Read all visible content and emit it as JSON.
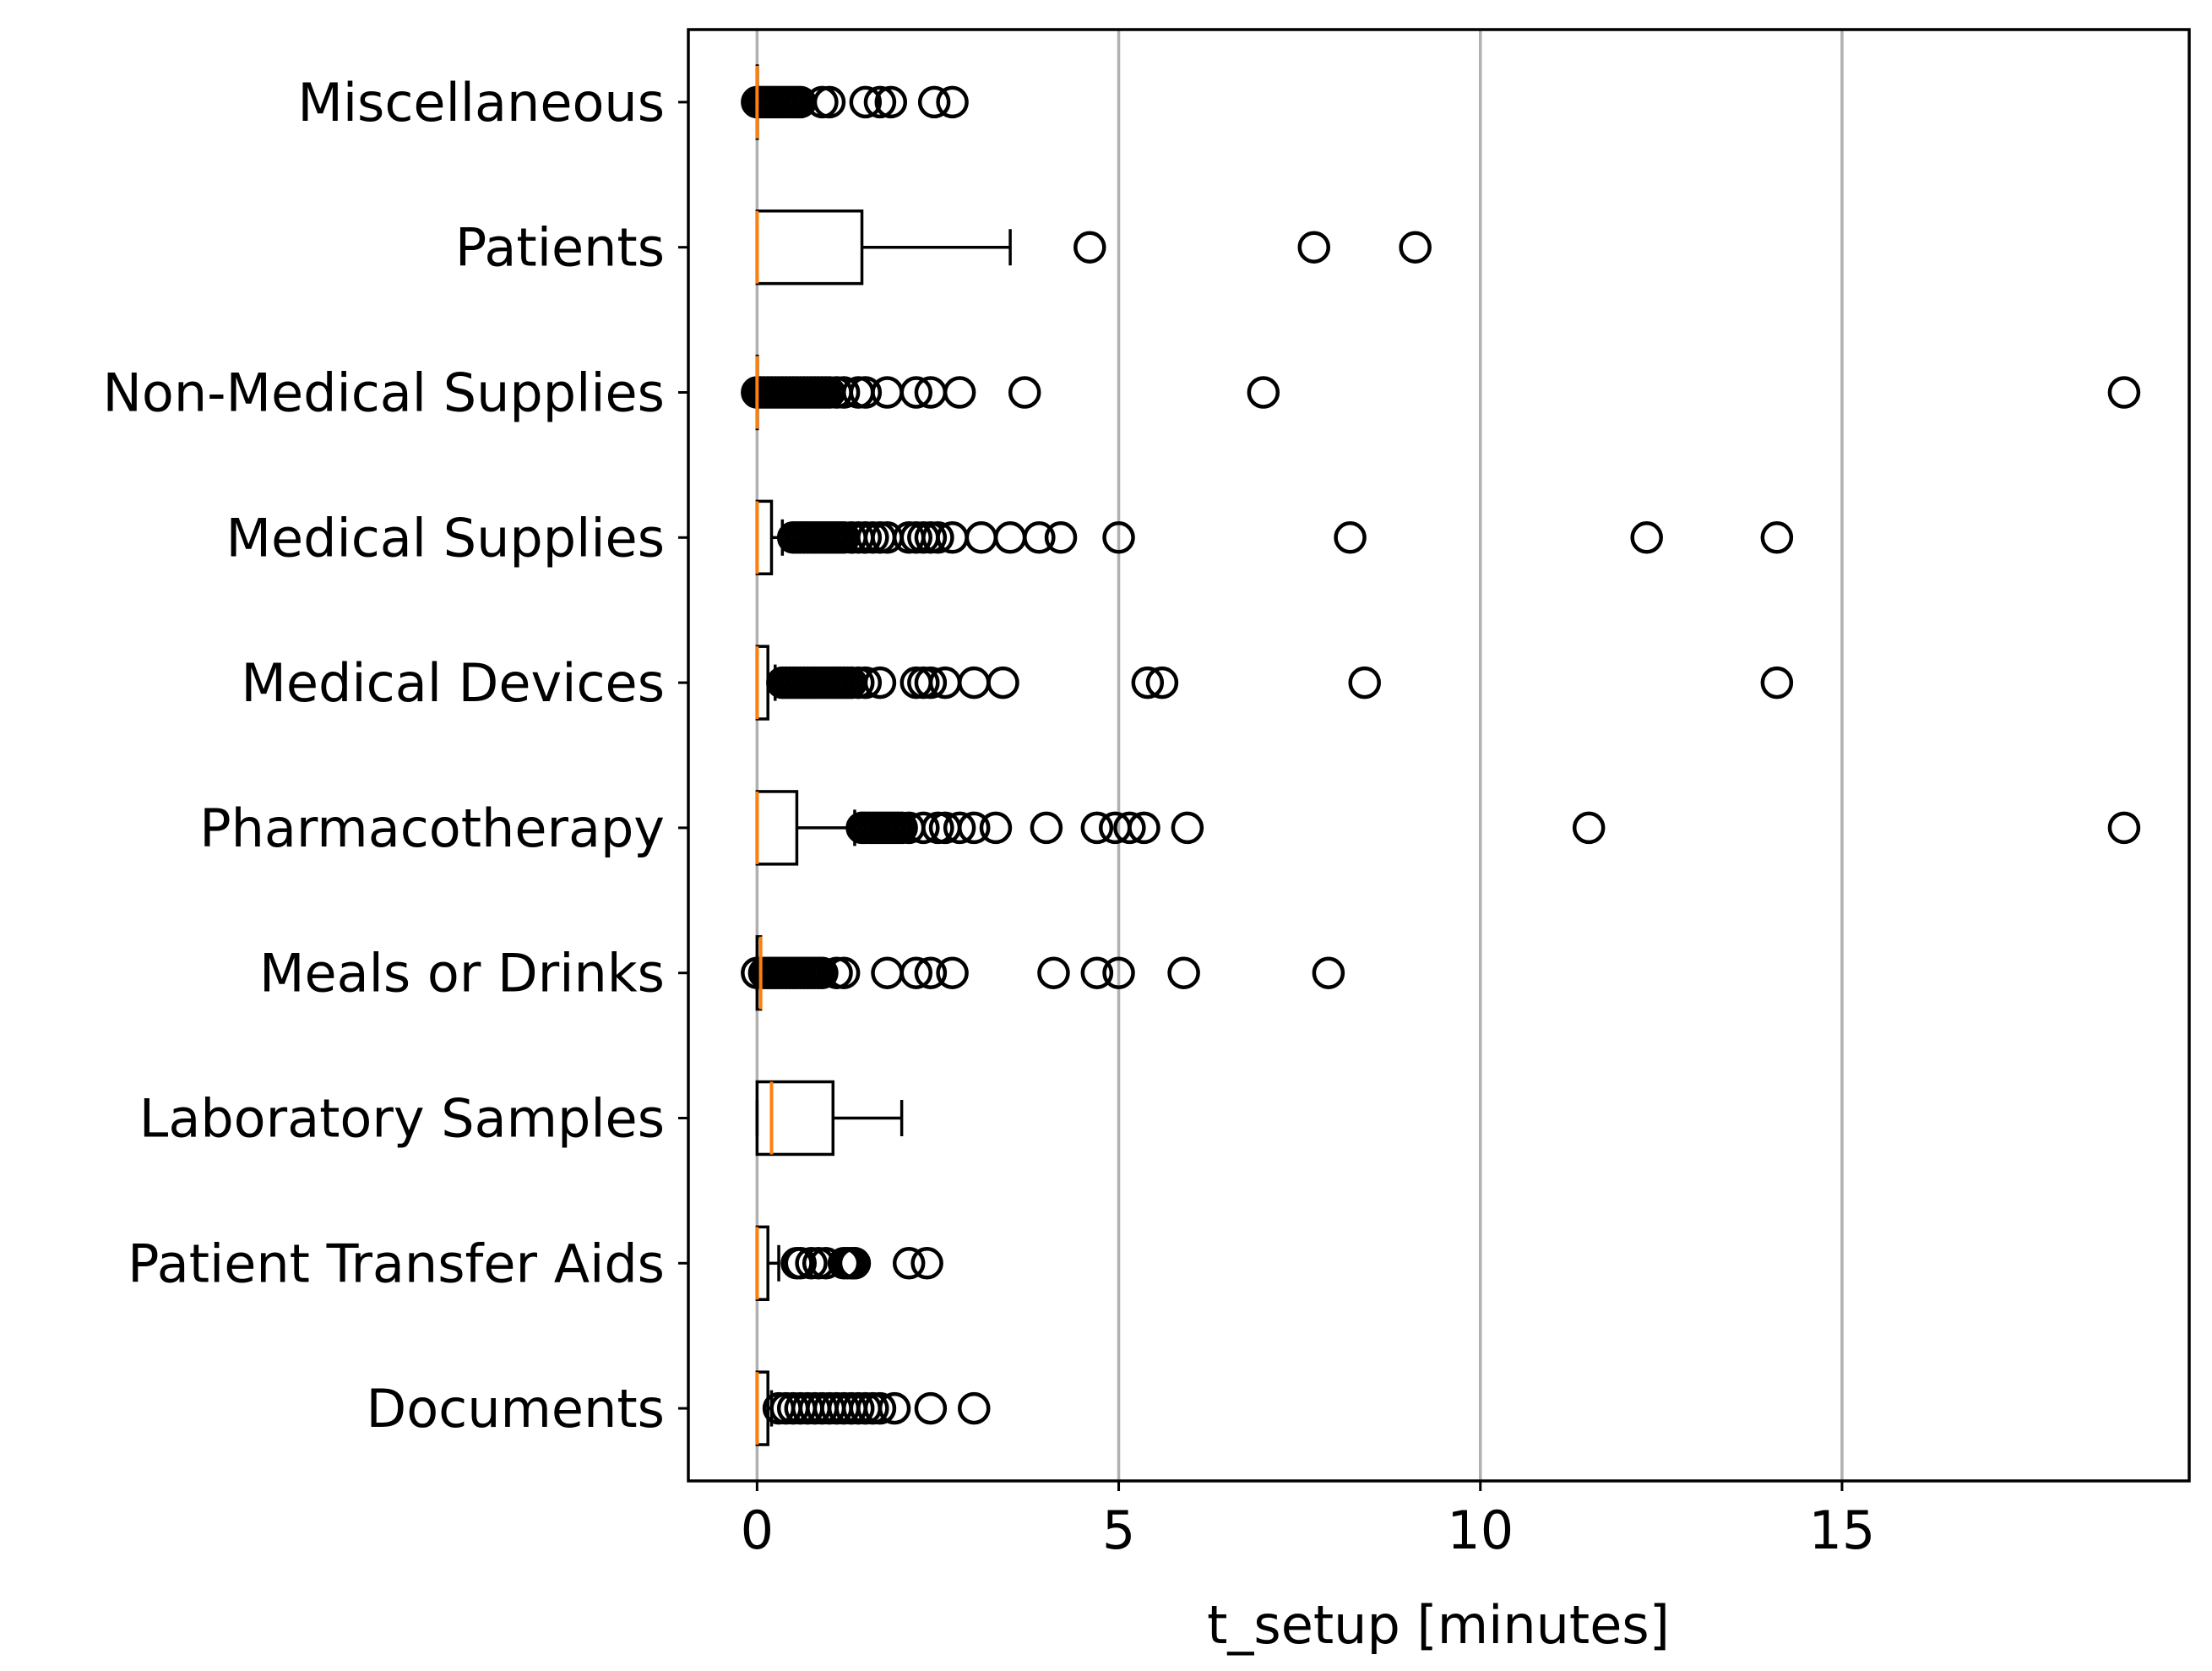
{
  "chart_data": {
    "type": "box",
    "orientation": "horizontal",
    "title": "",
    "xlabel": "t_setup [minutes]",
    "ylabel": "",
    "xlim": [
      -0.95,
      19.8
    ],
    "xticks": [
      0,
      5,
      10,
      15
    ],
    "grid": "x",
    "colors": {
      "median": "#ff7f0e",
      "box": "#000000",
      "grid": "#b0b0b0",
      "flier": "#000000"
    },
    "categories": [
      {
        "name": "Documents",
        "whisker_low": 0.0,
        "q1": 0.0,
        "median": 0.0,
        "q3": 0.15,
        "whisker_high": 0.2,
        "outliers": [
          0.3,
          0.4,
          0.5,
          0.6,
          0.7,
          0.8,
          0.9,
          1.0,
          1.1,
          1.2,
          1.3,
          1.4,
          1.5,
          1.6,
          1.7,
          1.9,
          2.4,
          3.0
        ]
      },
      {
        "name": "Patient Transfer Aids",
        "whisker_low": 0.0,
        "q1": 0.0,
        "median": 0.0,
        "q3": 0.15,
        "whisker_high": 0.3,
        "outliers": [
          0.55,
          0.6,
          0.75,
          0.85,
          0.95,
          1.2,
          1.25,
          1.3,
          1.35,
          2.1,
          2.35
        ]
      },
      {
        "name": "Laboratory Samples",
        "whisker_low": 0.0,
        "q1": 0.0,
        "median": 0.2,
        "q3": 1.05,
        "whisker_high": 2.0,
        "outliers": []
      },
      {
        "name": "Meals or Drinks",
        "whisker_low": 0.0,
        "q1": 0.0,
        "median": 0.05,
        "q3": 0.05,
        "whisker_high": 0.05,
        "outliers": [
          0.0,
          0.1,
          0.15,
          0.2,
          0.25,
          0.3,
          0.35,
          0.4,
          0.45,
          0.5,
          0.55,
          0.6,
          0.65,
          0.7,
          0.75,
          0.8,
          0.85,
          0.9,
          1.1,
          1.2,
          1.8,
          2.2,
          2.4,
          2.7,
          4.1,
          4.7,
          5.0,
          5.9,
          7.9
        ]
      },
      {
        "name": "Pharmacotherapy",
        "whisker_low": 0.0,
        "q1": 0.0,
        "median": 0.0,
        "q3": 0.55,
        "whisker_high": 1.35,
        "outliers": [
          1.45,
          1.5,
          1.55,
          1.6,
          1.65,
          1.7,
          1.75,
          1.8,
          1.85,
          1.9,
          1.95,
          2.0,
          2.1,
          2.3,
          2.5,
          2.6,
          2.8,
          3.0,
          3.3,
          4.0,
          4.7,
          4.95,
          5.15,
          5.35,
          5.95,
          11.5,
          18.9
        ]
      },
      {
        "name": "Medical Devices",
        "whisker_low": 0.0,
        "q1": 0.0,
        "median": 0.0,
        "q3": 0.15,
        "whisker_high": 0.25,
        "outliers": [
          0.35,
          0.4,
          0.45,
          0.5,
          0.55,
          0.6,
          0.65,
          0.7,
          0.75,
          0.8,
          0.85,
          0.9,
          0.95,
          1.0,
          1.05,
          1.1,
          1.15,
          1.2,
          1.25,
          1.3,
          1.4,
          1.5,
          1.7,
          2.2,
          2.3,
          2.4,
          2.6,
          3.0,
          3.4,
          5.4,
          5.6,
          8.4,
          14.1
        ]
      },
      {
        "name": "Medical Supplies",
        "whisker_low": 0.0,
        "q1": 0.0,
        "median": 0.0,
        "q3": 0.2,
        "whisker_high": 0.35,
        "outliers": [
          0.5,
          0.55,
          0.6,
          0.65,
          0.7,
          0.75,
          0.8,
          0.85,
          0.9,
          0.95,
          1.0,
          1.05,
          1.1,
          1.15,
          1.2,
          1.3,
          1.4,
          1.5,
          1.6,
          1.7,
          1.8,
          2.1,
          2.2,
          2.3,
          2.4,
          2.5,
          2.7,
          3.1,
          3.5,
          3.9,
          4.2,
          5.0,
          8.2,
          12.3,
          14.1
        ]
      },
      {
        "name": "Non-Medical Supplies",
        "whisker_low": 0.0,
        "q1": 0.0,
        "median": 0.0,
        "q3": 0.0,
        "whisker_high": 0.0,
        "outliers": [
          0.0,
          0.05,
          0.1,
          0.15,
          0.2,
          0.25,
          0.3,
          0.35,
          0.4,
          0.45,
          0.5,
          0.55,
          0.6,
          0.65,
          0.7,
          0.75,
          0.8,
          0.85,
          0.9,
          0.95,
          1.0,
          1.1,
          1.2,
          1.4,
          1.5,
          1.8,
          2.2,
          2.4,
          2.8,
          3.7,
          7.0,
          18.9
        ]
      },
      {
        "name": "Patients",
        "whisker_low": 0.0,
        "q1": 0.0,
        "median": 0.0,
        "q3": 1.45,
        "whisker_high": 3.5,
        "outliers": [
          4.6,
          7.7,
          9.1
        ]
      },
      {
        "name": "Miscellaneous",
        "whisker_low": 0.0,
        "q1": 0.0,
        "median": 0.0,
        "q3": 0.0,
        "whisker_high": 0.0,
        "outliers": [
          0.0,
          0.05,
          0.1,
          0.15,
          0.2,
          0.25,
          0.3,
          0.35,
          0.4,
          0.45,
          0.5,
          0.55,
          0.6,
          0.9,
          1.0,
          1.5,
          1.7,
          1.85,
          2.45,
          2.7
        ]
      }
    ]
  }
}
